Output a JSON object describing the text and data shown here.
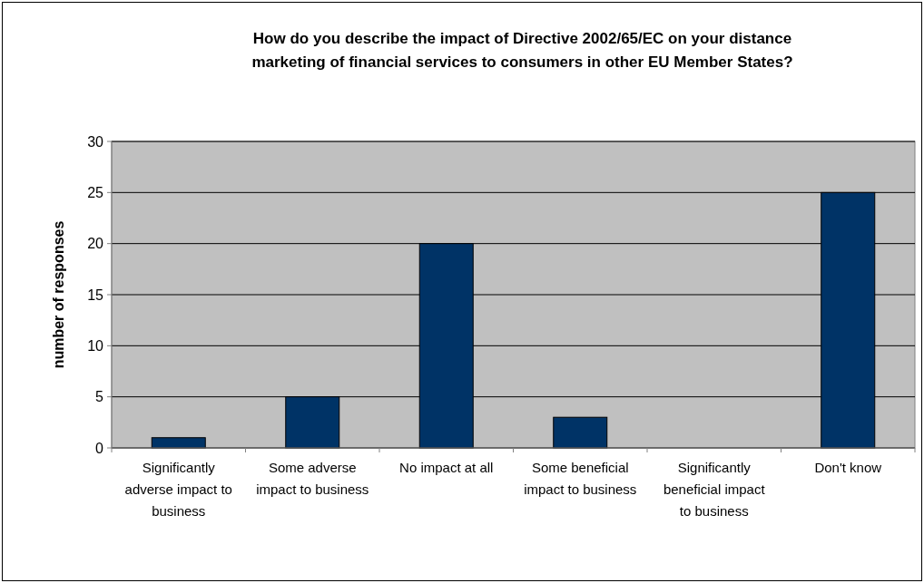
{
  "chart_data": {
    "type": "bar",
    "title": "How do you describe the impact of Directive 2002/65/EC on your distance marketing of financial services to consumers in other EU Member States?",
    "ylabel": "number of responses",
    "categories": [
      "Significantly adverse impact to business",
      "Some adverse impact to business",
      "No impact at all",
      "Some beneficial impact to business",
      "Significantly beneficial impact to business",
      "Don't know"
    ],
    "values": [
      1,
      5,
      20,
      3,
      0,
      25
    ],
    "color": "#003366",
    "ylim": [
      0,
      30
    ],
    "yticks": [
      0,
      5,
      10,
      15,
      20,
      25,
      30
    ],
    "grid": "y"
  }
}
